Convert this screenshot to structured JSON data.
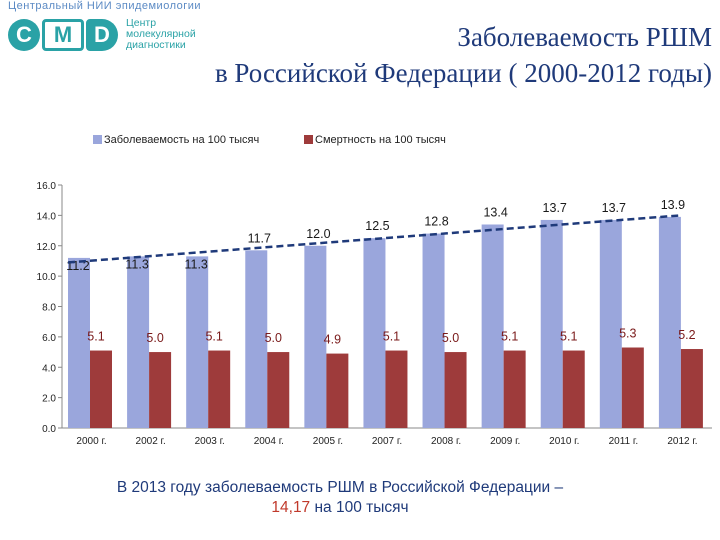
{
  "logo": {
    "top_text": "Центральный НИИ эпидемиологии",
    "letters": [
      "C",
      "M",
      "D"
    ],
    "text_lines": [
      "Центр",
      "молекулярной",
      "диагностики"
    ]
  },
  "title": {
    "line1": "Заболеваемость РШМ",
    "line2": "в Российской Федерации ( 2000-2012 годы)"
  },
  "caption": {
    "line1": "В 2013 году заболеваемость РШМ в Российской Федерации –",
    "value": "14,17",
    "rest": " на 100 тысяч"
  },
  "colors": {
    "incidence": "#9aa6dc",
    "mortality": "#9e3b3b",
    "trend": "#1f3a7a",
    "incidence_label": "#1a1a1a",
    "mortality_label": "#7a1a1a"
  },
  "chart_data": {
    "type": "bar",
    "title": "",
    "xlabel": "",
    "ylabel": "",
    "ylim": [
      0,
      16
    ],
    "yticks": [
      "0.0",
      "2.0",
      "4.0",
      "6.0",
      "8.0",
      "10.0",
      "12.0",
      "14.0",
      "16.0"
    ],
    "categories": [
      "2000 г.",
      "2002 г.",
      "2003 г.",
      "2004 г.",
      "2005 г.",
      "2007 г.",
      "2008 г.",
      "2009 г.",
      "2010 г.",
      "2011 г.",
      "2012 г."
    ],
    "series": [
      {
        "name": "Заболеваемость на 100 тысяч",
        "values": [
          11.2,
          11.3,
          11.3,
          11.7,
          12.0,
          12.5,
          12.8,
          13.4,
          13.7,
          13.7,
          13.9
        ],
        "labels": [
          "11.2",
          "11.3",
          "11.3",
          "11.7",
          "12.0",
          "12.5",
          "12.8",
          "13.4",
          "13.7",
          "13.7",
          "13.9"
        ]
      },
      {
        "name": "Смертность на 100 тысяч",
        "values": [
          5.1,
          5.0,
          5.1,
          5.0,
          4.9,
          5.1,
          5.0,
          5.1,
          5.1,
          5.3,
          5.2
        ],
        "labels": [
          "5.1",
          "5.0",
          "5.1",
          "5.0",
          "4.9",
          "5.1",
          "5.0",
          "5.1",
          "5.1",
          "5.3",
          "5.2"
        ]
      }
    ],
    "trendline": {
      "start": 10.9,
      "end": 14.0,
      "style": "dashed"
    },
    "legend": "top",
    "grid": false
  }
}
